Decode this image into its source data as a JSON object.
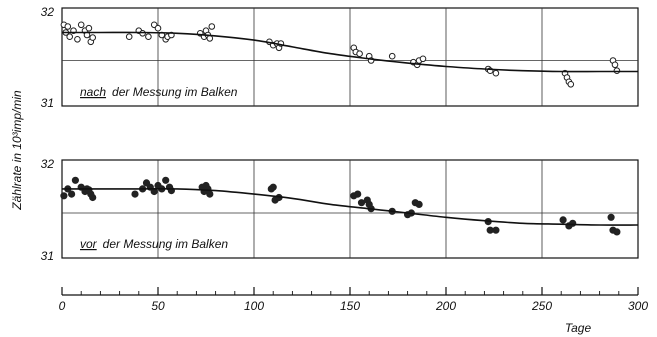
{
  "chart_data": [
    {
      "type": "scatter",
      "panel": "top",
      "caption_underlined": "nach",
      "caption_rest": "der Messung im Balken",
      "marker": "open-circle",
      "ylim": [
        31,
        32
      ],
      "yticks": [
        "32",
        "31"
      ],
      "grid": true,
      "points": [
        [
          1,
          31.92
        ],
        [
          2,
          31.83
        ],
        [
          3,
          31.9
        ],
        [
          4,
          31.78
        ],
        [
          6,
          31.85
        ],
        [
          8,
          31.75
        ],
        [
          10,
          31.92
        ],
        [
          12,
          31.85
        ],
        [
          13,
          31.8
        ],
        [
          14,
          31.88
        ],
        [
          15,
          31.72
        ],
        [
          16,
          31.77
        ],
        [
          35,
          31.78
        ],
        [
          40,
          31.85
        ],
        [
          42,
          31.82
        ],
        [
          45,
          31.78
        ],
        [
          48,
          31.92
        ],
        [
          50,
          31.88
        ],
        [
          52,
          31.8
        ],
        [
          54,
          31.75
        ],
        [
          55,
          31.78
        ],
        [
          57,
          31.8
        ],
        [
          72,
          31.82
        ],
        [
          74,
          31.78
        ],
        [
          75,
          31.85
        ],
        [
          76,
          31.8
        ],
        [
          77,
          31.76
        ],
        [
          78,
          31.9
        ],
        [
          108,
          31.72
        ],
        [
          110,
          31.68
        ],
        [
          112,
          31.7
        ],
        [
          113,
          31.65
        ],
        [
          114,
          31.7
        ],
        [
          152,
          31.65
        ],
        [
          153,
          31.6
        ],
        [
          155,
          31.58
        ],
        [
          160,
          31.55
        ],
        [
          161,
          31.5
        ],
        [
          172,
          31.55
        ],
        [
          183,
          31.48
        ],
        [
          185,
          31.45
        ],
        [
          186,
          31.5
        ],
        [
          188,
          31.52
        ],
        [
          222,
          31.4
        ],
        [
          223,
          31.38
        ],
        [
          226,
          31.35
        ],
        [
          262,
          31.35
        ],
        [
          263,
          31.3
        ],
        [
          264,
          31.25
        ],
        [
          265,
          31.22
        ],
        [
          287,
          31.5
        ],
        [
          288,
          31.45
        ],
        [
          289,
          31.38
        ]
      ],
      "fit_curve": {
        "x": [
          0,
          20,
          40,
          60,
          80,
          100,
          120,
          140,
          160,
          180,
          200,
          220,
          240,
          260,
          280,
          300
        ],
        "y": [
          31.83,
          31.83,
          31.83,
          31.82,
          31.79,
          31.74,
          31.66,
          31.58,
          31.52,
          31.47,
          31.43,
          31.4,
          31.38,
          31.37,
          31.37,
          31.37
        ]
      }
    },
    {
      "type": "scatter",
      "panel": "bottom",
      "caption_underlined": "vor",
      "caption_rest": "der Messung im Balken",
      "marker": "filled-circle",
      "ylim": [
        31,
        32
      ],
      "yticks": [
        "32",
        "31"
      ],
      "grid": true,
      "points": [
        [
          1,
          31.7
        ],
        [
          3,
          31.78
        ],
        [
          5,
          31.72
        ],
        [
          7,
          31.88
        ],
        [
          10,
          31.8
        ],
        [
          12,
          31.75
        ],
        [
          13,
          31.78
        ],
        [
          14,
          31.77
        ],
        [
          15,
          31.72
        ],
        [
          16,
          31.68
        ],
        [
          38,
          31.72
        ],
        [
          42,
          31.78
        ],
        [
          44,
          31.85
        ],
        [
          46,
          31.8
        ],
        [
          48,
          31.75
        ],
        [
          50,
          31.82
        ],
        [
          52,
          31.78
        ],
        [
          54,
          31.88
        ],
        [
          56,
          31.8
        ],
        [
          57,
          31.76
        ],
        [
          73,
          31.8
        ],
        [
          74,
          31.75
        ],
        [
          75,
          31.82
        ],
        [
          76,
          31.78
        ],
        [
          77,
          31.72
        ],
        [
          109,
          31.78
        ],
        [
          110,
          31.8
        ],
        [
          111,
          31.65
        ],
        [
          113,
          31.68
        ],
        [
          152,
          31.7
        ],
        [
          154,
          31.72
        ],
        [
          156,
          31.62
        ],
        [
          159,
          31.65
        ],
        [
          160,
          31.6
        ],
        [
          161,
          31.55
        ],
        [
          172,
          31.52
        ],
        [
          180,
          31.48
        ],
        [
          182,
          31.5
        ],
        [
          184,
          31.62
        ],
        [
          186,
          31.6
        ],
        [
          222,
          31.4
        ],
        [
          223,
          31.3
        ],
        [
          226,
          31.3
        ],
        [
          261,
          31.42
        ],
        [
          264,
          31.35
        ],
        [
          266,
          31.38
        ],
        [
          286,
          31.45
        ],
        [
          287,
          31.3
        ],
        [
          289,
          31.28
        ]
      ],
      "fit_curve": {
        "x": [
          0,
          20,
          40,
          60,
          80,
          100,
          120,
          140,
          160,
          180,
          200,
          220,
          240,
          260,
          280,
          300
        ],
        "y": [
          31.78,
          31.78,
          31.78,
          31.78,
          31.76,
          31.72,
          31.67,
          31.6,
          31.55,
          31.5,
          31.45,
          31.41,
          31.38,
          31.37,
          31.36,
          31.36
        ]
      }
    }
  ],
  "axes": {
    "y_label": "Zählrate in 10³imp/min",
    "x_label": "Tage",
    "x_ticks": [
      "0",
      "50",
      "100",
      "150",
      "200",
      "250",
      "300"
    ],
    "xlim": [
      0,
      300
    ]
  }
}
